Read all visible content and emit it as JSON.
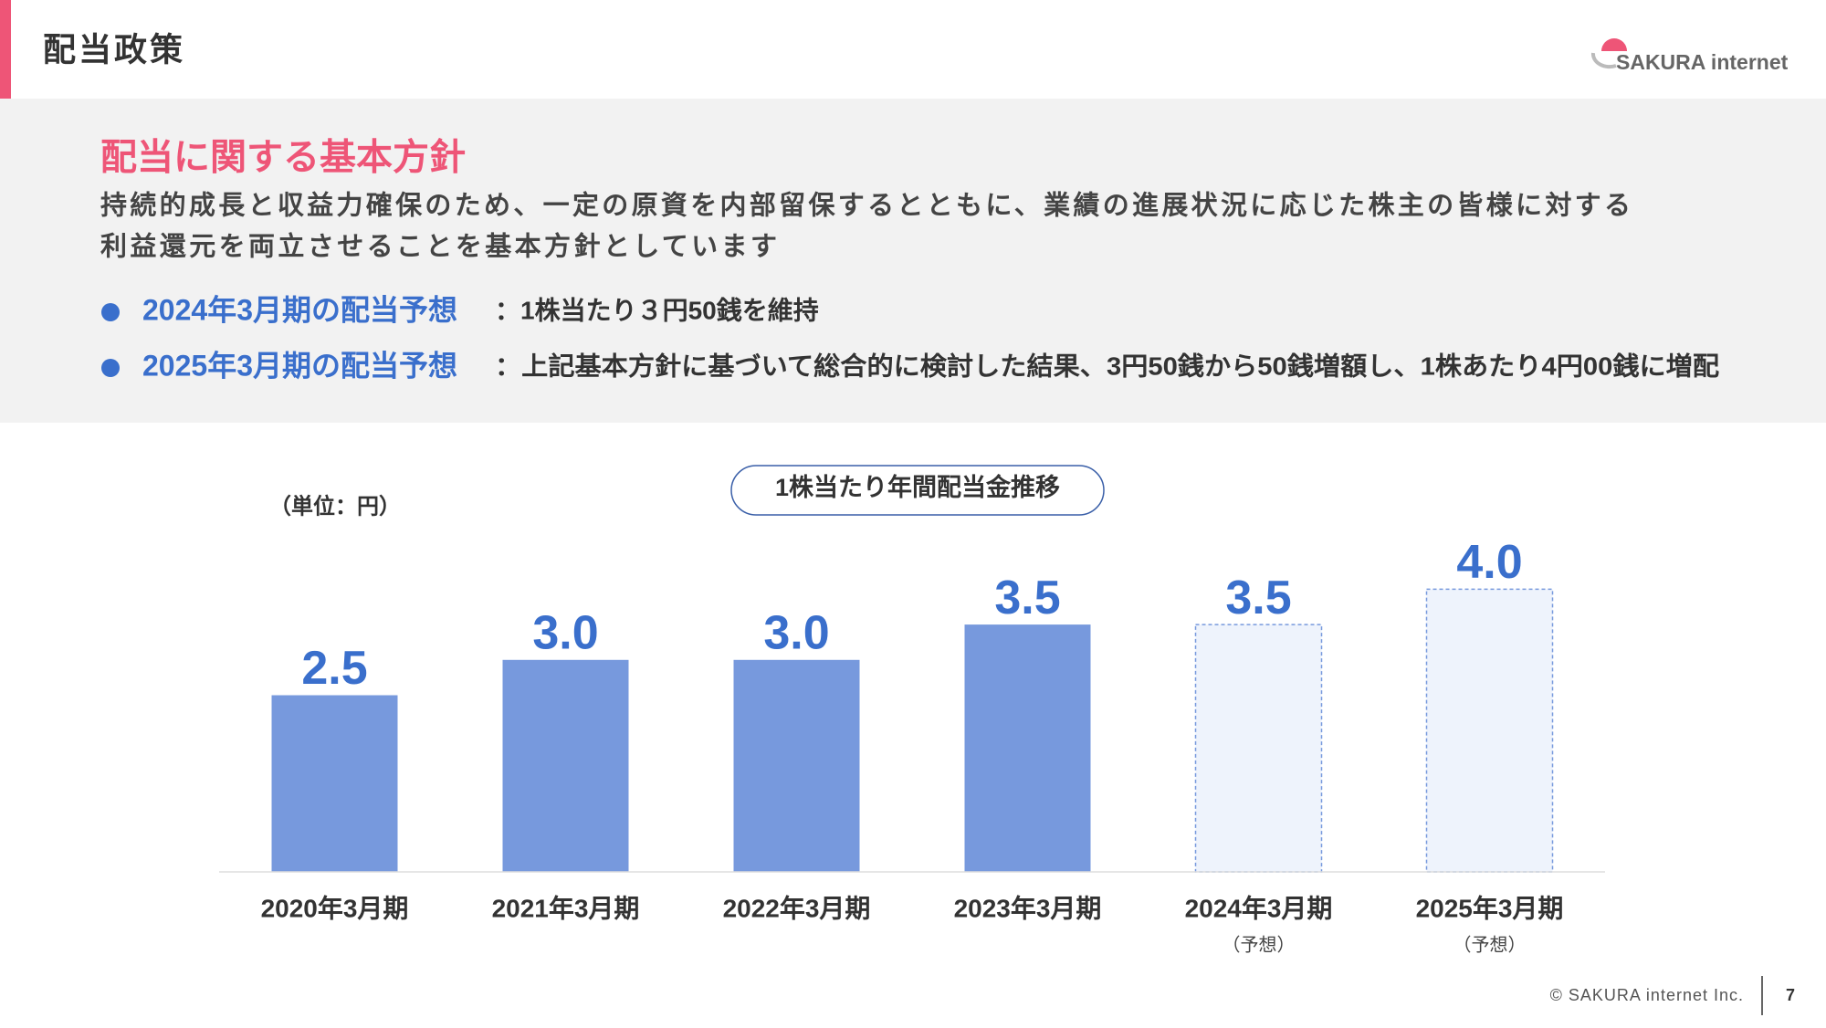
{
  "header": {
    "title": "配当政策",
    "logo": "SAKURA internet"
  },
  "policy": {
    "heading": "配当に関する基本方針",
    "lines": [
      "持続的成長と収益力確保のため、一定の原資を内部留保するとともに、業績の進展状況に応じた株主の皆様に対する",
      "利益還元を両立させることを基本方針としています"
    ],
    "bullets": [
      {
        "label": "2024年3月期の配当予想",
        "text": "：1株当たり３円50銭を維持"
      },
      {
        "label": "2025年3月期の配当予想",
        "text": "：上記基本方針に基づいて総合的に検討した結果、3円50銭から50銭増額し、1株あたり4円00銭に増配"
      }
    ]
  },
  "chart_data": {
    "type": "bar",
    "title": "1株当たり年間配当金推移",
    "unit_label": "（単位：円）",
    "categories": [
      "2020年3月期",
      "2021年3月期",
      "2022年3月期",
      "2023年3月期",
      "2024年3月期",
      "2025年3月期"
    ],
    "category_notes": [
      null,
      null,
      null,
      null,
      "（予想）",
      "（予想）"
    ],
    "values": [
      2.5,
      3.0,
      3.0,
      3.5,
      3.5,
      4.0
    ],
    "value_labels": [
      "2.5",
      "3.0",
      "3.0",
      "3.5",
      "3.5",
      "4.0"
    ],
    "color": "#7799dd",
    "forecast_color": "#eef3fc",
    "label_color": "#3a6fcc",
    "ylim": [
      0,
      5
    ]
  },
  "footer": {
    "copyright": "© SAKURA internet Inc.",
    "page": "7"
  }
}
